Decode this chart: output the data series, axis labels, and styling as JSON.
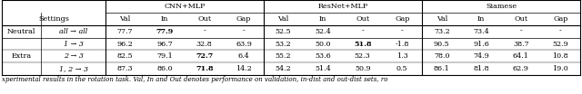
{
  "caption": "xperimental results in the rotation task. Val, In and Out denotes performance on validation, in-dist and out-dist sets, ro",
  "col_group_labels": [
    "CNN+MLP",
    "ResNet+MLP",
    "Siamese"
  ],
  "col_group_spans": [
    4,
    4,
    4
  ],
  "header": [
    "Val",
    "In",
    "Out",
    "Gap",
    "Val",
    "In",
    "Out",
    "Gap",
    "Val",
    "In",
    "Out",
    "Gap"
  ],
  "settings_header": "Settings",
  "rows": [
    {
      "group": "Neutral",
      "setting": "all → all",
      "setting_italic": true,
      "data": [
        "77.7",
        "77.9",
        "-",
        "-",
        "52.5",
        "52.4",
        "-",
        "-",
        "73.2",
        "73.4",
        "-",
        "-"
      ],
      "bold": [
        false,
        true,
        false,
        false,
        false,
        false,
        false,
        false,
        false,
        false,
        false,
        false
      ]
    },
    {
      "group": "Extra",
      "setting": "1 → 3",
      "setting_italic": true,
      "data": [
        "96.2",
        "96.7",
        "32.8",
        "63.9",
        "53.2",
        "50.0",
        "51.8",
        "-1.8",
        "90.5",
        "91.6",
        "38.7",
        "52.9"
      ],
      "bold": [
        false,
        false,
        false,
        false,
        false,
        false,
        true,
        false,
        false,
        false,
        false,
        false
      ]
    },
    {
      "group": "",
      "setting": "2 → 3",
      "setting_italic": true,
      "data": [
        "82.5",
        "79.1",
        "72.7",
        "6.4",
        "55.2",
        "53.6",
        "52.3",
        "1.3",
        "78.0",
        "74.9",
        "64.1",
        "10.8"
      ],
      "bold": [
        false,
        false,
        true,
        false,
        false,
        false,
        false,
        false,
        false,
        false,
        false,
        false
      ]
    },
    {
      "group": "",
      "setting": "1, 2 → 3",
      "setting_italic": true,
      "data": [
        "87.3",
        "86.0",
        "71.8",
        "14.2",
        "54.2",
        "51.4",
        "50.9",
        "0.5",
        "86.1",
        "81.8",
        "62.9",
        "19.0"
      ],
      "bold": [
        false,
        false,
        true,
        false,
        false,
        false,
        false,
        false,
        false,
        false,
        false,
        false
      ]
    }
  ],
  "background_color": "#ffffff",
  "figsize": [
    6.4,
    1.04
  ],
  "dpi": 100
}
